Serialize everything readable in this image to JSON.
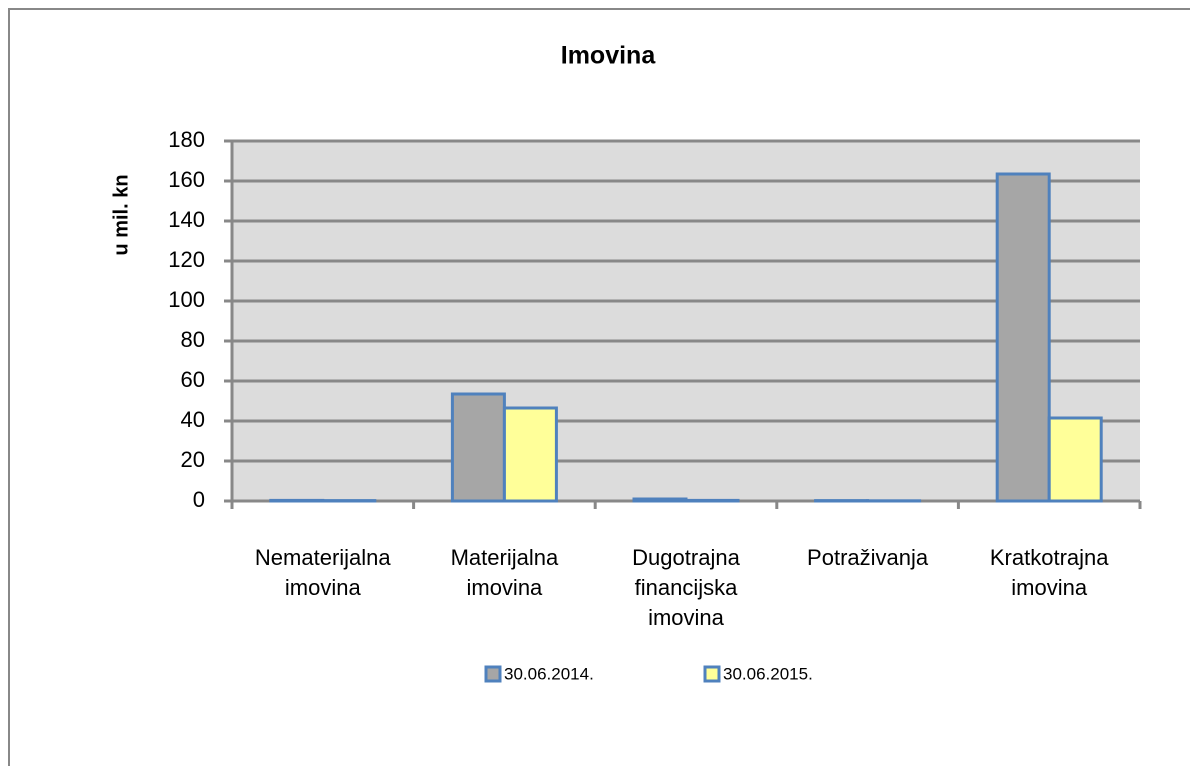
{
  "chart_data": {
    "type": "bar",
    "title": "Imovina",
    "y_label": "u mil. kn",
    "categories": [
      "Nematerijalna imovina",
      "Materijalna imovina",
      "Dugotrajna financijska imovina",
      "Potraživanja",
      "Kratkotrajna imovina"
    ],
    "series": [
      {
        "name": "30.06.2014.",
        "color": "#a6a6a6",
        "values": [
          0.3,
          53.5,
          1,
          0.2,
          163.5
        ]
      },
      {
        "name": "30.06.2015.",
        "color": "#ffff99",
        "values": [
          0.2,
          46.5,
          0.3,
          0.1,
          41.5
        ]
      }
    ],
    "ylim": [
      0,
      180
    ],
    "yticks": [
      0,
      20,
      40,
      60,
      80,
      100,
      120,
      140,
      160,
      180
    ],
    "grid": true,
    "legend": "bottom"
  }
}
